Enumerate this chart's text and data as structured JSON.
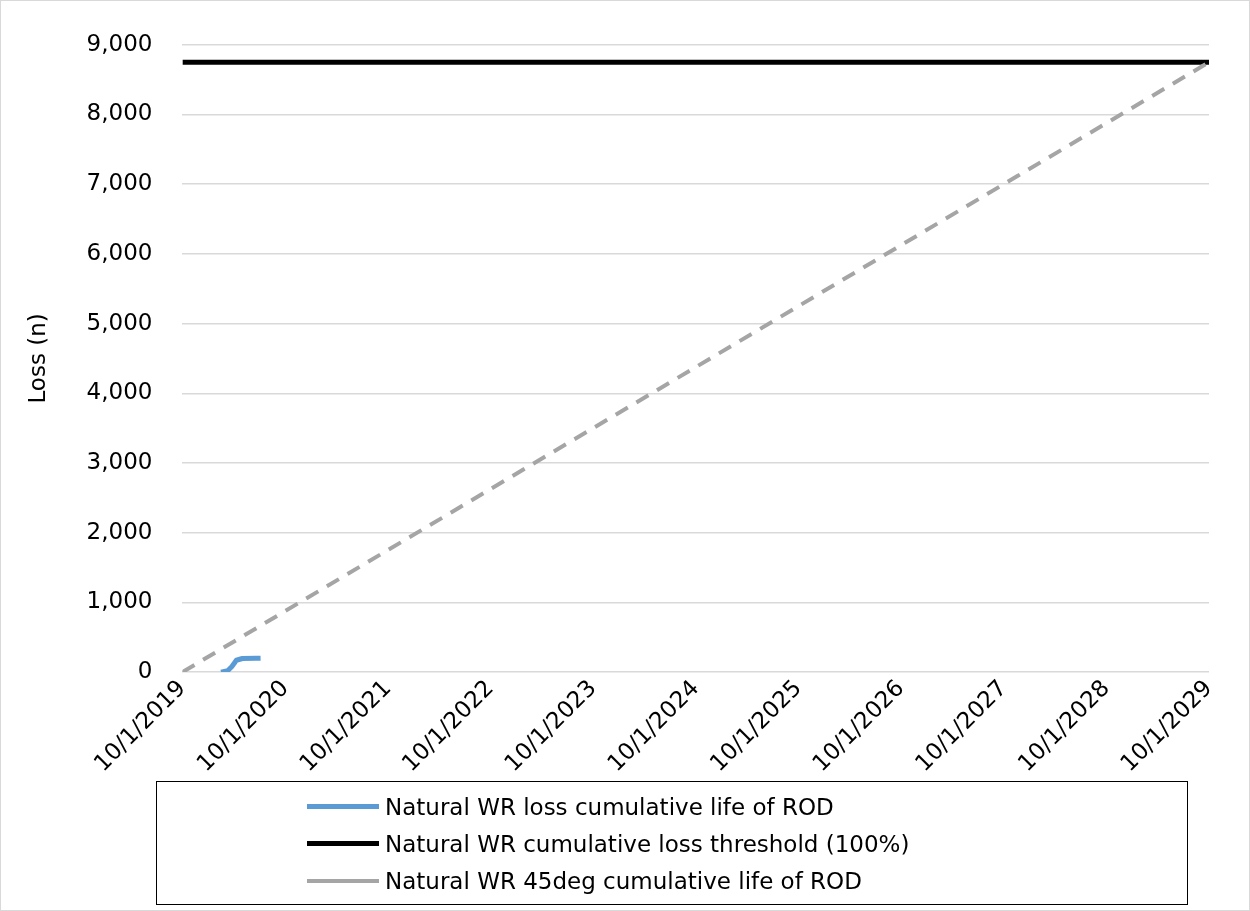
{
  "chart_data": {
    "type": "line",
    "ylabel": "Loss (n)",
    "xlim": [
      "2019-10-01",
      "2029-10-01"
    ],
    "xticks": [
      {
        "value": "2019-10-01",
        "label": "10/1/2019"
      },
      {
        "value": "2020-10-01",
        "label": "10/1/2020"
      },
      {
        "value": "2021-10-01",
        "label": "10/1/2021"
      },
      {
        "value": "2022-10-01",
        "label": "10/1/2022"
      },
      {
        "value": "2023-10-01",
        "label": "10/1/2023"
      },
      {
        "value": "2024-10-01",
        "label": "10/1/2024"
      },
      {
        "value": "2025-10-01",
        "label": "10/1/2025"
      },
      {
        "value": "2026-10-01",
        "label": "10/1/2026"
      },
      {
        "value": "2027-10-01",
        "label": "10/1/2027"
      },
      {
        "value": "2028-10-01",
        "label": "10/1/2028"
      },
      {
        "value": "2029-10-01",
        "label": "10/1/2029"
      }
    ],
    "ylim": [
      0,
      9000
    ],
    "yticks": [
      {
        "value": 0,
        "label": "0"
      },
      {
        "value": 1000,
        "label": "1,000"
      },
      {
        "value": 2000,
        "label": "2,000"
      },
      {
        "value": 3000,
        "label": "3,000"
      },
      {
        "value": 4000,
        "label": "4,000"
      },
      {
        "value": 5000,
        "label": "5,000"
      },
      {
        "value": 6000,
        "label": "6,000"
      },
      {
        "value": 7000,
        "label": "7,000"
      },
      {
        "value": 8000,
        "label": "8,000"
      },
      {
        "value": 9000,
        "label": "9,000"
      }
    ],
    "grid": "y",
    "legend": "bottom",
    "marker": "none",
    "series": [
      {
        "name": "Natural WR loss cumulative life of ROD",
        "color": "#5b9bd5",
        "line_style": "solid",
        "x": [
          "2020-02-15",
          "2020-03-10",
          "2020-03-25",
          "2020-04-10",
          "2020-05-01",
          "2020-07-05"
        ],
        "values": [
          0,
          20,
          80,
          170,
          195,
          200
        ]
      },
      {
        "name": "Natural WR cumulative loss threshold (100%)",
        "color": "#000000",
        "line_style": "solid",
        "x": [
          "2019-10-01",
          "2029-10-01"
        ],
        "values": [
          8750,
          8750
        ]
      },
      {
        "name": "Natural WR 45deg cumulative life of ROD",
        "color": "#a5a5a5",
        "line_style": "dashed",
        "x": [
          "2019-10-01",
          "2029-10-01"
        ],
        "values": [
          0,
          8750
        ]
      }
    ]
  }
}
